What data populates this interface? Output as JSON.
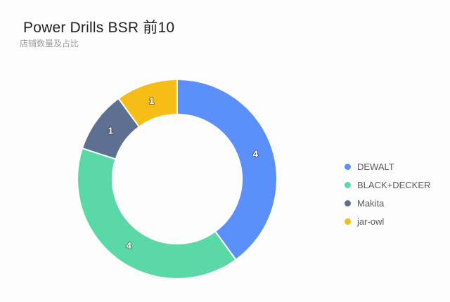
{
  "header": {
    "title": "Power Drills BSR 前10",
    "subtitle": "店铺数量及占比"
  },
  "chart_data": {
    "type": "pie",
    "subtype": "donut",
    "title": "Power Drills BSR 前10",
    "subtitle": "店铺数量及占比",
    "categories": [
      "DEWALT",
      "BLACK+DECKER",
      "Makita",
      "jar-owl"
    ],
    "values": [
      4,
      4,
      1,
      1
    ],
    "slice_labels": [
      "4",
      "4",
      "1",
      "1"
    ],
    "colors": [
      "#5B8FF9",
      "#5AD8A6",
      "#5D7092",
      "#F6BD16"
    ],
    "total": 10,
    "start_angle_deg": 0,
    "direction": "clockwise",
    "inner_radius_ratio": 0.65,
    "legend_position": "right",
    "label_text_color": "#ffffff",
    "background_color": "#fdfdfd"
  },
  "legend": {
    "items": [
      {
        "label": "DEWALT",
        "color": "#5B8FF9"
      },
      {
        "label": "BLACK+DECKER",
        "color": "#5AD8A6"
      },
      {
        "label": "Makita",
        "color": "#5D7092"
      },
      {
        "label": "jar-owl",
        "color": "#F6BD16"
      }
    ]
  }
}
